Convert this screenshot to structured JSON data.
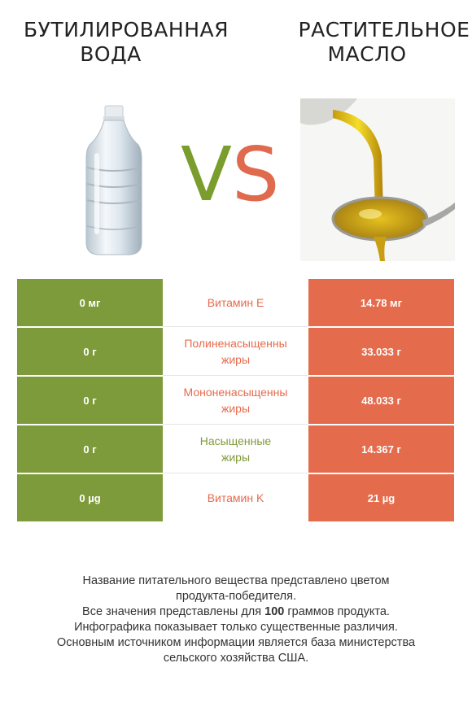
{
  "header": {
    "left_title_line1": "БУТИЛИРОВАННАЯ",
    "left_title_line2": "ВОДА",
    "right_title_line1": "РАСТИТЕЛЬНОЕ",
    "right_title_line2": "МАСЛО",
    "vs_v": "V",
    "vs_s": "S"
  },
  "colors": {
    "left_product": "#7e9b3b",
    "right_product": "#e56b4d"
  },
  "rows": [
    {
      "left": "0 мг",
      "nutrient_line1": "Витамин E",
      "nutrient_line2": "",
      "right": "14.78 мг",
      "winner_color": "#e56b4d"
    },
    {
      "left": "0 г",
      "nutrient_line1": "Полиненасыщенны",
      "nutrient_line2": "жиры",
      "right": "33.033 г",
      "winner_color": "#e56b4d"
    },
    {
      "left": "0 г",
      "nutrient_line1": "Мононенасыщенны",
      "nutrient_line2": "жиры",
      "right": "48.033 г",
      "winner_color": "#e56b4d"
    },
    {
      "left": "0 г",
      "nutrient_line1": "Насыщенные",
      "nutrient_line2": "жиры",
      "right": "14.367 г",
      "winner_color": "#7e9b3b"
    },
    {
      "left": "0 µg",
      "nutrient_line1": "Витамин K",
      "nutrient_line2": "",
      "right": "21 µg",
      "winner_color": "#e56b4d"
    }
  ],
  "footnote": {
    "line1": "Название питательного вещества представлено цветом",
    "line2": "продукта-победителя.",
    "line3_prefix": "Все значения представлены для ",
    "line3_bold": "100",
    "line3_suffix": " граммов продукта.",
    "line4": "Инфографика показывает только существенные различия.",
    "line5": "Основным источником информации является база министерства",
    "line6": "сельского хозяйства США."
  }
}
